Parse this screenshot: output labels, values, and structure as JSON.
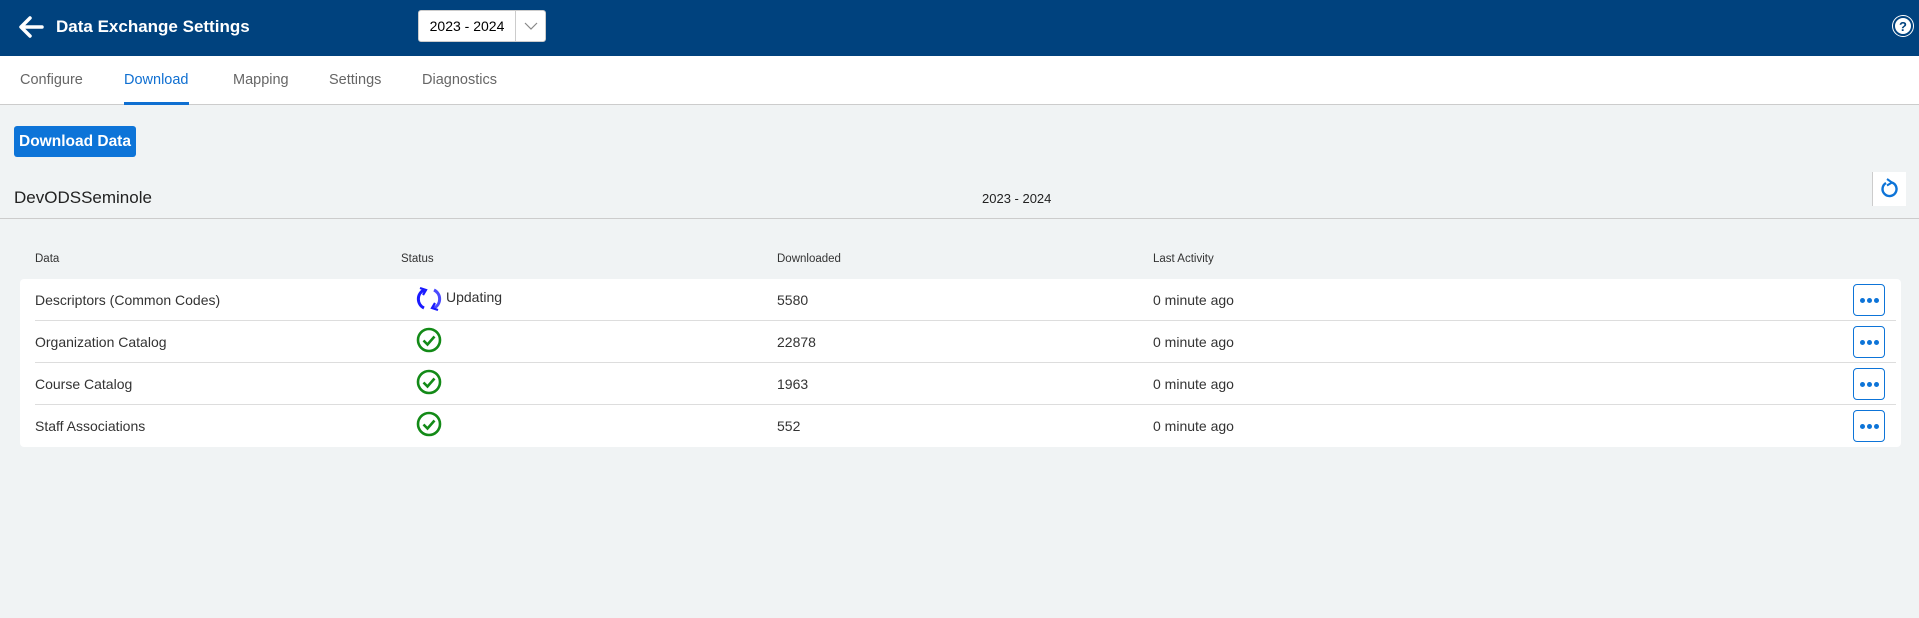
{
  "header": {
    "title": "Data Exchange Settings",
    "year_selector": "2023 - 2024"
  },
  "tabs": [
    {
      "label": "Configure"
    },
    {
      "label": "Download",
      "active": true
    },
    {
      "label": "Mapping"
    },
    {
      "label": "Settings"
    },
    {
      "label": "Diagnostics"
    }
  ],
  "download_button": "Download Data",
  "section": {
    "org": "DevODSSeminole",
    "year": "2023 - 2024"
  },
  "table": {
    "columns": [
      "Data",
      "Status",
      "Downloaded",
      "Last Activity"
    ],
    "rows": [
      {
        "data": "Descriptors (Common Codes)",
        "status": "Updating",
        "status_icon": "sync-icon",
        "downloaded": "5580",
        "last_activity": "0 minute ago"
      },
      {
        "data": "Organization Catalog",
        "status": "",
        "status_icon": "check-circle-icon",
        "downloaded": "22878",
        "last_activity": "0 minute ago"
      },
      {
        "data": "Course Catalog",
        "status": "",
        "status_icon": "check-circle-icon",
        "downloaded": "1963",
        "last_activity": "0 minute ago"
      },
      {
        "data": "Staff Associations",
        "status": "",
        "status_icon": "check-circle-icon",
        "downloaded": "552",
        "last_activity": "0 minute ago"
      }
    ]
  },
  "colors": {
    "header": "#00427e",
    "accent": "#0d74d8",
    "success": "#138a17",
    "updating": "#1a1aff"
  }
}
